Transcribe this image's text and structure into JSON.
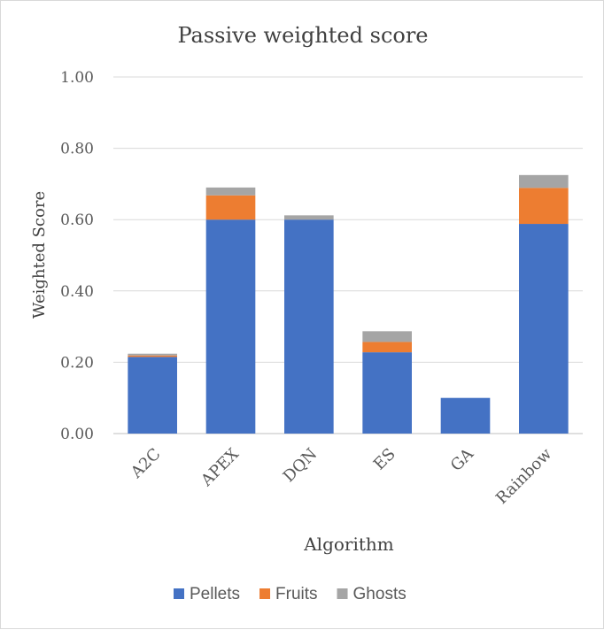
{
  "chart_data": {
    "type": "bar",
    "stacked": true,
    "title": "Passive weighted score",
    "xlabel": "Algorithm",
    "ylabel": "Weighted Score",
    "categories": [
      "A2C",
      "APEX",
      "DQN",
      "ES",
      "GA",
      "Rainbow"
    ],
    "series": [
      {
        "name": "Pellets",
        "color": "#4472C4",
        "values": [
          0.215,
          0.6,
          0.6,
          0.228,
          0.1,
          0.588
        ]
      },
      {
        "name": "Fruits",
        "color": "#ED7D31",
        "values": [
          0.004,
          0.068,
          0.0,
          0.029,
          0.0,
          0.101
        ]
      },
      {
        "name": "Ghosts",
        "color": "#A5A5A5",
        "values": [
          0.005,
          0.022,
          0.012,
          0.03,
          0.0,
          0.036
        ]
      }
    ],
    "ylim": [
      0,
      1.0
    ],
    "yticks": [
      "0.00",
      "0.20",
      "0.40",
      "0.60",
      "0.80",
      "1.00"
    ],
    "grid": true,
    "legend_position": "bottom"
  }
}
